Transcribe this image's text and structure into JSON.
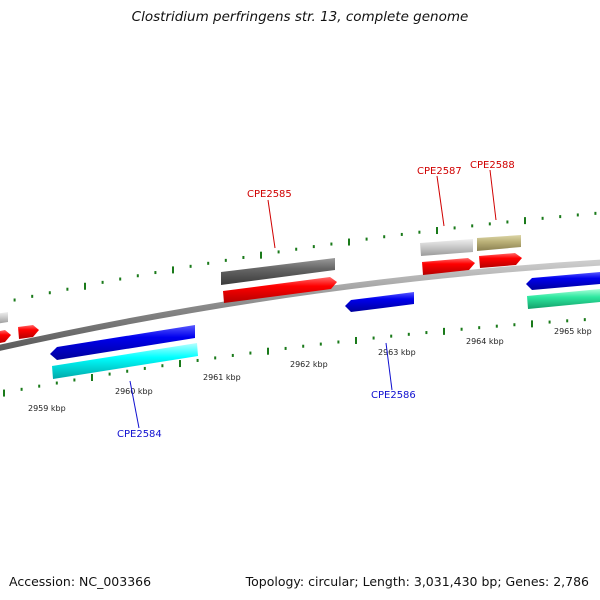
{
  "title": "Clostridium perfringens str. 13, complete genome",
  "footer": {
    "accession": "Accession: NC_003366",
    "topology": "Topology: circular; Length: 3,031,430 bp; Genes: 2,786"
  },
  "colors": {
    "backbone": "#888888",
    "tick": "#1a7a1a",
    "label_red": "#d00000",
    "label_blue": "#1010d0"
  },
  "scale_labels": [
    "2959 kbp",
    "2960 kbp",
    "2961 kbp",
    "2962 kbp",
    "2963 kbp",
    "2964 kbp",
    "2965 kbp"
  ],
  "gene_labels": [
    {
      "text": "CPE2584",
      "color": "#1010d0"
    },
    {
      "text": "CPE2585",
      "color": "#d00000"
    },
    {
      "text": "CPE2586",
      "color": "#1010d0"
    },
    {
      "text": "CPE2587",
      "color": "#d00000"
    },
    {
      "text": "CPE2588",
      "color": "#d00000"
    }
  ]
}
